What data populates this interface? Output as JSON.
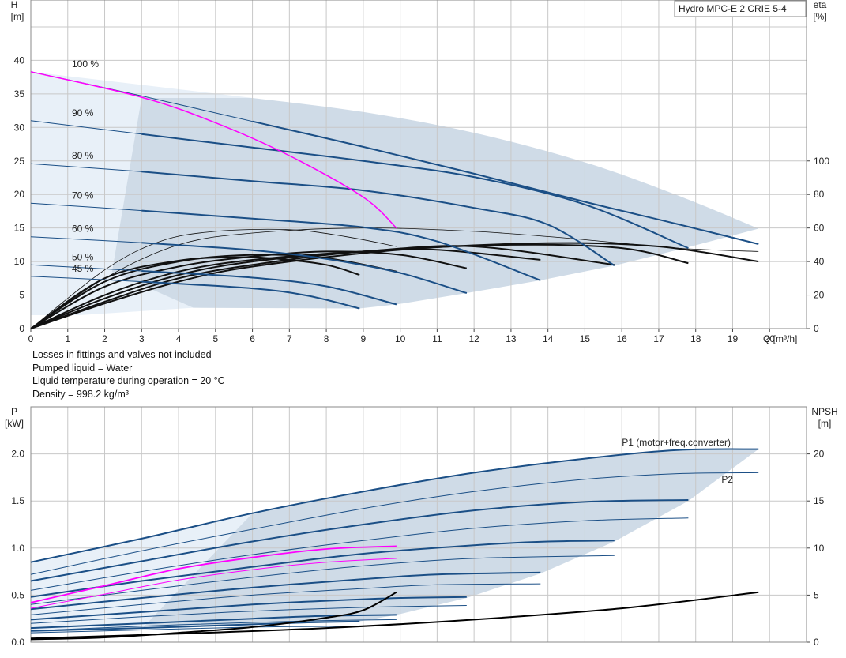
{
  "chart_data": [
    {
      "type": "line",
      "title": "Hydro MPC-E 2 CRIE 5-4",
      "x_axis": {
        "label": "Q [m³/h]",
        "range": [
          0,
          21
        ],
        "ticks": [
          0,
          1,
          2,
          3,
          4,
          5,
          6,
          7,
          8,
          9,
          10,
          11,
          12,
          13,
          14,
          15,
          16,
          17,
          18,
          19,
          20
        ]
      },
      "y_axis_left": {
        "label": "H",
        "unit": "[m]",
        "range": [
          0,
          49
        ],
        "ticks": [
          0,
          5,
          10,
          15,
          20,
          25,
          30,
          35,
          40
        ]
      },
      "y_axis_right": {
        "label": "eta",
        "unit": "[%]",
        "range": [
          0,
          196
        ],
        "ticks": [
          0,
          20,
          40,
          60,
          80,
          100
        ]
      },
      "grid": true,
      "speed_curves": [
        {
          "label": "100 %",
          "points": [
            [
              0,
              38.3
            ],
            [
              3,
              34.7
            ],
            [
              6,
              30.9
            ],
            [
              9,
              27.1
            ],
            [
              12,
              23.1
            ],
            [
              15,
              18.9
            ],
            [
              17.5,
              15.6
            ],
            [
              19.7,
              12.6
            ]
          ]
        },
        {
          "label": "90 %",
          "points": [
            [
              0,
              31.0
            ],
            [
              3,
              29.0
            ],
            [
              6,
              27.0
            ],
            [
              9,
              25.0
            ],
            [
              12,
              22.6
            ],
            [
              15,
              18.5
            ],
            [
              17.8,
              12.0
            ]
          ]
        },
        {
          "label": "80 %",
          "points": [
            [
              0,
              24.6
            ],
            [
              3,
              23.4
            ],
            [
              6,
              22.0
            ],
            [
              9,
              20.6
            ],
            [
              12,
              18.0
            ],
            [
              14,
              15.5
            ],
            [
              15.8,
              9.4
            ]
          ]
        },
        {
          "label": "70 %",
          "points": [
            [
              0,
              18.7
            ],
            [
              3,
              17.6
            ],
            [
              6,
              16.4
            ],
            [
              9,
              15.1
            ],
            [
              11,
              13.0
            ],
            [
              13.8,
              7.2
            ]
          ]
        },
        {
          "label": "60 %",
          "points": [
            [
              0,
              13.7
            ],
            [
              3,
              12.8
            ],
            [
              6,
              11.7
            ],
            [
              8,
              10.4
            ],
            [
              10,
              8.3
            ],
            [
              11.8,
              5.3
            ]
          ]
        },
        {
          "label": "50 %",
          "points": [
            [
              0,
              9.5
            ],
            [
              3,
              8.6
            ],
            [
              6,
              7.6
            ],
            [
              8,
              6.3
            ],
            [
              9.9,
              3.6
            ]
          ]
        },
        {
          "label": "45 %",
          "points": [
            [
              0,
              7.8
            ],
            [
              3,
              7.0
            ],
            [
              6,
              6.0
            ],
            [
              7.5,
              4.9
            ],
            [
              8.9,
              3.0
            ]
          ]
        }
      ],
      "single_pump_curve": {
        "color": "#ff00ff",
        "points": [
          [
            0,
            38.3
          ],
          [
            3,
            34.5
          ],
          [
            5,
            30.7
          ],
          [
            7,
            25.8
          ],
          [
            9,
            19.6
          ],
          [
            9.9,
            15.0
          ]
        ]
      },
      "efficiency_curves_right_axis": [
        {
          "points": [
            [
              0,
              0
            ],
            [
              2,
              30
            ],
            [
              4,
              40.5
            ],
            [
              5.5,
              42.5
            ],
            [
              6.5,
              42
            ],
            [
              8,
              38
            ],
            [
              8.9,
              32
            ]
          ]
        },
        {
          "points": [
            [
              0,
              0
            ],
            [
              2,
              28
            ],
            [
              4,
              40
            ],
            [
              6,
              44
            ],
            [
              8,
              42
            ],
            [
              9.9,
              34
            ]
          ]
        },
        {
          "points": [
            [
              0,
              0
            ],
            [
              2,
              25
            ],
            [
              4,
              37
            ],
            [
              6,
              43
            ],
            [
              8,
              46
            ],
            [
              10,
              44
            ],
            [
              11.8,
              36
            ]
          ]
        },
        {
          "points": [
            [
              0,
              0
            ],
            [
              2,
              20
            ],
            [
              4,
              34
            ],
            [
              6,
              41
            ],
            [
              9,
              46
            ],
            [
              11,
              47
            ],
            [
              13.8,
              41
            ]
          ]
        },
        {
          "points": [
            [
              0,
              0
            ],
            [
              2,
              18
            ],
            [
              4,
              32
            ],
            [
              6,
              40
            ],
            [
              9,
              46
            ],
            [
              12,
              49
            ],
            [
              15.8,
              38
            ]
          ]
        },
        {
          "points": [
            [
              0,
              0
            ],
            [
              2,
              16
            ],
            [
              4,
              30
            ],
            [
              6,
              38
            ],
            [
              9,
              46
            ],
            [
              13,
              50
            ],
            [
              16,
              48
            ],
            [
              17.8,
              39
            ]
          ]
        },
        {
          "points": [
            [
              0,
              0
            ],
            [
              2,
              15
            ],
            [
              4,
              28
            ],
            [
              6,
              37
            ],
            [
              10,
              47
            ],
            [
              14,
              51
            ],
            [
              17,
              49
            ],
            [
              19.7,
              40
            ]
          ]
        },
        {
          "points": [
            [
              0,
              0
            ],
            [
              2,
              35
            ],
            [
              3.5,
              52
            ],
            [
              5,
              58
            ],
            [
              7,
              59
            ],
            [
              8.5,
              55
            ],
            [
              9.9,
              49
            ]
          ]
        },
        {
          "points": [
            [
              0,
              0
            ],
            [
              2,
              30
            ],
            [
              4,
              50
            ],
            [
              6,
              57
            ],
            [
              9,
              60
            ],
            [
              12,
              58
            ],
            [
              14.5,
              54
            ],
            [
              17.5,
              48
            ],
            [
              19.7,
              46
            ]
          ]
        }
      ]
    },
    {
      "type": "line",
      "x_axis": {
        "range": [
          0,
          21
        ]
      },
      "y_axis_left": {
        "label": "P",
        "unit": "[kW]",
        "range": [
          0,
          2.5
        ],
        "ticks": [
          "0.0",
          "0.5",
          "1.0",
          "1.5",
          "2.0"
        ]
      },
      "y_axis_right": {
        "label": "NPSH",
        "unit": "[m]",
        "range": [
          0,
          25
        ],
        "ticks": [
          0,
          5,
          10,
          15,
          20
        ]
      },
      "grid": true,
      "series_labels": {
        "p1": "P1 (motor+freq.converter)",
        "p2": "P2"
      },
      "p1_curves": [
        {
          "points": [
            [
              0,
              0.85
            ],
            [
              3,
              1.1
            ],
            [
              6,
              1.37
            ],
            [
              9,
              1.6
            ],
            [
              12,
              1.8
            ],
            [
              15,
              1.95
            ],
            [
              17.5,
              2.04
            ],
            [
              19.7,
              2.05
            ]
          ]
        },
        {
          "points": [
            [
              0,
              0.65
            ],
            [
              3,
              0.86
            ],
            [
              6,
              1.07
            ],
            [
              9,
              1.25
            ],
            [
              12,
              1.4
            ],
            [
              15,
              1.49
            ],
            [
              17.8,
              1.51
            ]
          ]
        },
        {
          "points": [
            [
              0,
              0.48
            ],
            [
              3,
              0.65
            ],
            [
              6,
              0.8
            ],
            [
              9,
              0.94
            ],
            [
              12,
              1.03
            ],
            [
              14,
              1.07
            ],
            [
              15.8,
              1.08
            ]
          ]
        },
        {
          "points": [
            [
              0,
              0.35
            ],
            [
              3,
              0.47
            ],
            [
              6,
              0.58
            ],
            [
              9,
              0.67
            ],
            [
              11,
              0.72
            ],
            [
              13.8,
              0.74
            ]
          ]
        },
        {
          "points": [
            [
              0,
              0.24
            ],
            [
              3,
              0.32
            ],
            [
              6,
              0.4
            ],
            [
              8,
              0.44
            ],
            [
              10,
              0.47
            ],
            [
              11.8,
              0.48
            ]
          ]
        },
        {
          "points": [
            [
              0,
              0.15
            ],
            [
              3,
              0.2
            ],
            [
              6,
              0.25
            ],
            [
              8,
              0.28
            ],
            [
              9.9,
              0.29
            ]
          ]
        },
        {
          "points": [
            [
              0,
              0.12
            ],
            [
              3,
              0.15
            ],
            [
              6,
              0.19
            ],
            [
              7.5,
              0.21
            ],
            [
              8.9,
              0.22
            ]
          ]
        }
      ],
      "p2_curves": [
        {
          "points": [
            [
              0,
              0.72
            ],
            [
              3,
              0.97
            ],
            [
              6,
              1.2
            ],
            [
              9,
              1.42
            ],
            [
              12,
              1.6
            ],
            [
              15,
              1.73
            ],
            [
              17.5,
              1.79
            ],
            [
              19.7,
              1.8
            ]
          ]
        },
        {
          "points": [
            [
              0,
              0.55
            ],
            [
              3,
              0.75
            ],
            [
              6,
              0.93
            ],
            [
              9,
              1.08
            ],
            [
              12,
              1.21
            ],
            [
              15,
              1.29
            ],
            [
              17.8,
              1.32
            ]
          ]
        },
        {
          "points": [
            [
              0,
              0.4
            ],
            [
              3,
              0.55
            ],
            [
              6,
              0.69
            ],
            [
              9,
              0.81
            ],
            [
              12,
              0.89
            ],
            [
              15.8,
              0.92
            ]
          ]
        },
        {
          "points": [
            [
              0,
              0.29
            ],
            [
              3,
              0.4
            ],
            [
              6,
              0.5
            ],
            [
              9,
              0.57
            ],
            [
              11,
              0.61
            ],
            [
              13.8,
              0.62
            ]
          ]
        },
        {
          "points": [
            [
              0,
              0.2
            ],
            [
              3,
              0.27
            ],
            [
              6,
              0.33
            ],
            [
              9,
              0.37
            ],
            [
              11.8,
              0.39
            ]
          ]
        },
        {
          "points": [
            [
              0,
              0.12
            ],
            [
              3,
              0.17
            ],
            [
              6,
              0.21
            ],
            [
              8,
              0.23
            ],
            [
              9.9,
              0.24
            ]
          ]
        },
        {
          "points": [
            [
              0,
              0.1
            ],
            [
              3,
              0.13
            ],
            [
              6,
              0.16
            ],
            [
              8.9,
              0.17
            ]
          ]
        }
      ],
      "single_pump_p1": {
        "color": "#ff00ff",
        "points": [
          [
            0,
            0.42
          ],
          [
            2,
            0.6
          ],
          [
            4,
            0.78
          ],
          [
            6,
            0.9
          ],
          [
            8,
            0.99
          ],
          [
            9.9,
            1.02
          ]
        ]
      },
      "single_pump_p2": {
        "color": "#ff00ff",
        "points": [
          [
            0,
            0.36
          ],
          [
            2,
            0.51
          ],
          [
            4,
            0.66
          ],
          [
            6,
            0.77
          ],
          [
            8,
            0.85
          ],
          [
            9.9,
            0.89
          ]
        ]
      },
      "npsh_curves_right_axis": [
        {
          "points": [
            [
              0,
              0.3
            ],
            [
              2,
              0.5
            ],
            [
              4,
              1.0
            ],
            [
              6,
              1.6
            ],
            [
              8,
              2.6
            ],
            [
              9,
              3.4
            ],
            [
              9.9,
              5.3
            ]
          ]
        },
        {
          "points": [
            [
              0,
              0.4
            ],
            [
              4,
              0.9
            ],
            [
              8,
              1.5
            ],
            [
              12,
              2.4
            ],
            [
              16,
              3.6
            ],
            [
              19.7,
              5.3
            ]
          ]
        }
      ]
    }
  ],
  "notes": [
    "Losses in fittings and valves not included",
    "Pumped liquid = Water",
    "Liquid temperature during operation = 20 °C",
    "Density = 998.2 kg/m³"
  ],
  "colors": {
    "curve": "#1b4f86",
    "fill": "#cfdbe7",
    "fill_light": "#e8f0f8",
    "magenta": "#ff00ff",
    "grid": "#c8c8c8",
    "black": "#000000"
  }
}
